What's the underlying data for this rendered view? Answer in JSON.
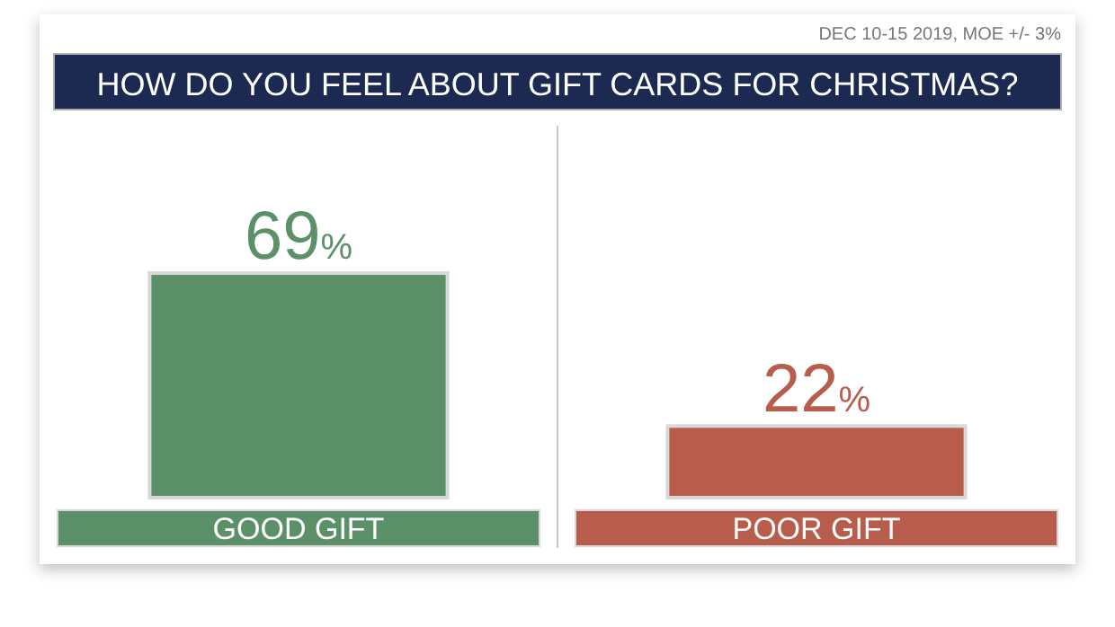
{
  "chart_data": {
    "type": "bar",
    "title": "HOW DO YOU FEEL ABOUT GIFT CARDS FOR CHRISTMAS?",
    "annotations": [
      "DEC 10-15 2019, MOE +/- 3%"
    ],
    "categories": [
      "GOOD GIFT",
      "POOR GIFT"
    ],
    "values": [
      69,
      22
    ],
    "colors": [
      "#5b9069",
      "#b85c4b"
    ],
    "value_labels": [
      "69%",
      "22%"
    ]
  }
}
